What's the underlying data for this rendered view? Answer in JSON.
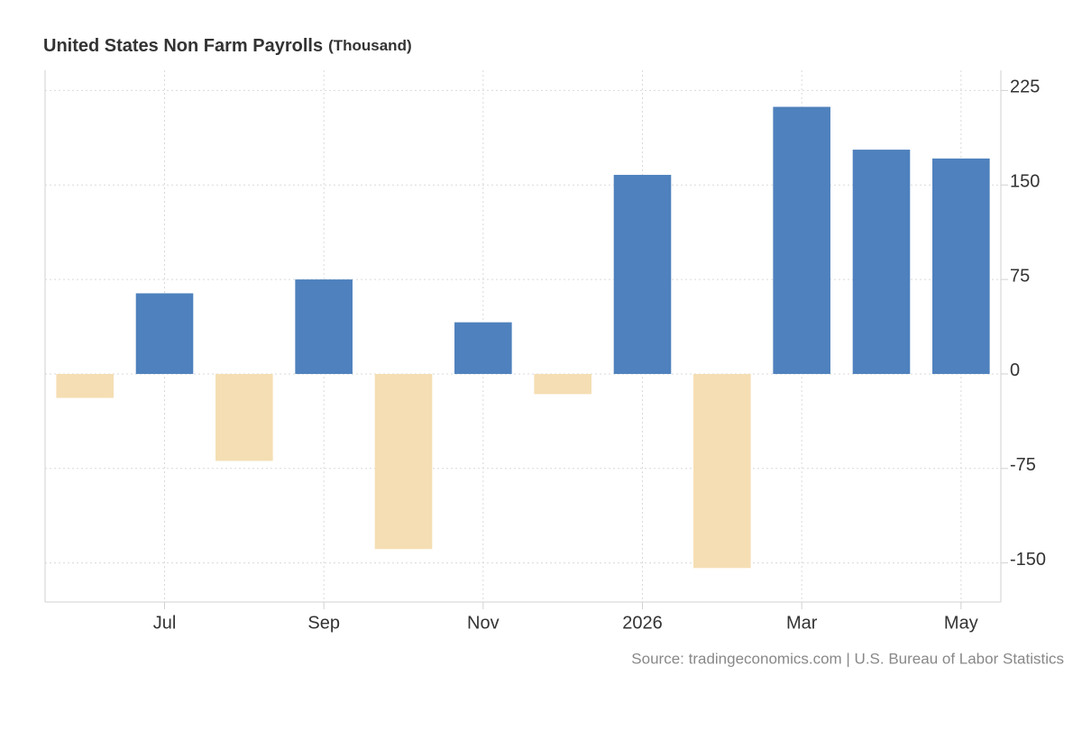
{
  "chart_data": {
    "type": "bar",
    "title": "United States Non Farm Payrolls",
    "unit": "(Thousand)",
    "source": "Source: tradingeconomics.com | U.S. Bureau of Labor Statistics",
    "categories": [
      null,
      "Jul",
      null,
      "Sep",
      null,
      "Nov",
      null,
      "2026",
      null,
      "Mar",
      null,
      "May"
    ],
    "values": [
      -19,
      64,
      -69,
      75,
      -139,
      41,
      -16,
      158,
      -154,
      212,
      178,
      171
    ],
    "color": "#4e81bd",
    "negative_color": "#f5deb3",
    "ylim": [
      -181,
      241
    ],
    "yticks": [
      -150,
      -75,
      0,
      75,
      150,
      225
    ],
    "grid": true
  }
}
